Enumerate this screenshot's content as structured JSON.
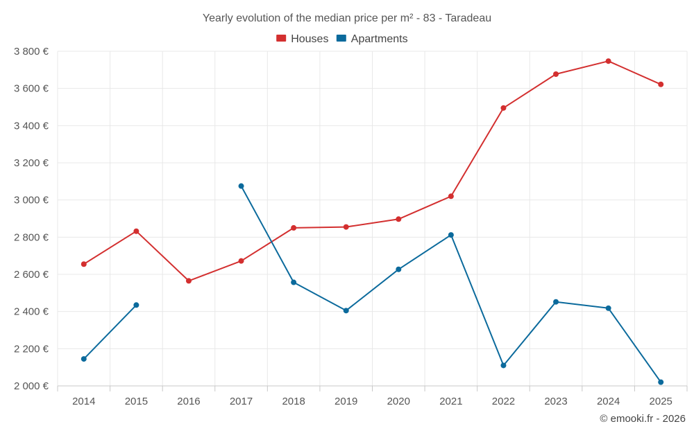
{
  "chart_data": {
    "type": "line",
    "title": "Yearly evolution of the median price per m² - 83 - Taradeau",
    "categories": [
      "2014",
      "2015",
      "2016",
      "2017",
      "2018",
      "2019",
      "2020",
      "2021",
      "2022",
      "2023",
      "2024",
      "2025"
    ],
    "ylim": [
      2000,
      3800
    ],
    "yticks": [
      2000,
      2200,
      2400,
      2600,
      2800,
      3000,
      3200,
      3400,
      3600,
      3800
    ],
    "ytick_labels": [
      "2 000 €",
      "2 200 €",
      "2 400 €",
      "2 600 €",
      "2 800 €",
      "3 000 €",
      "3 200 €",
      "3 400 €",
      "3 600 €",
      "3 800 €"
    ],
    "grid": true,
    "legend_position": "top-center",
    "series": [
      {
        "name": "Houses",
        "color": "#d32f2f",
        "values": [
          2655,
          2832,
          2565,
          2672,
          2850,
          2855,
          2897,
          3020,
          3495,
          3677,
          3747,
          3622
        ]
      },
      {
        "name": "Apartments",
        "color": "#0b6a9c",
        "values": [
          2145,
          2435,
          null,
          3075,
          2557,
          2405,
          2627,
          2812,
          2110,
          2452,
          2418,
          2020
        ]
      }
    ]
  },
  "credit": "© emooki.fr - 2026"
}
